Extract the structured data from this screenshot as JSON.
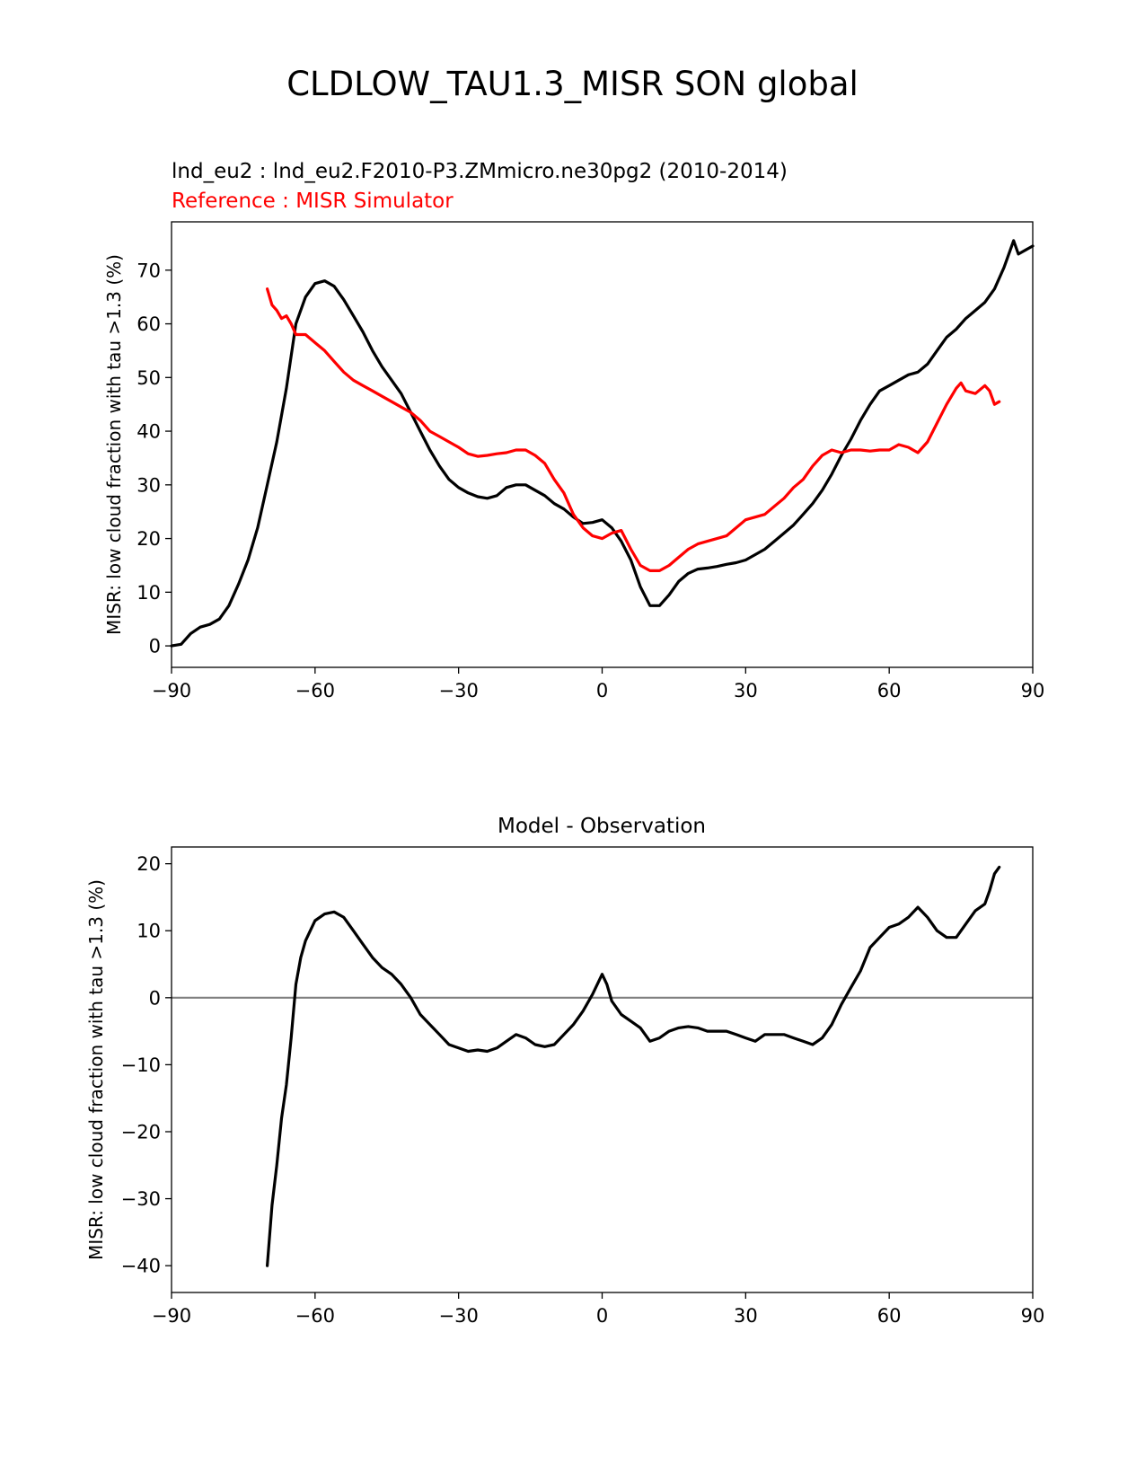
{
  "title": "CLDLOW_TAU1.3_MISR SON global",
  "chart_data": [
    {
      "type": "line",
      "subtitle_test": "lnd_eu2 : lnd_eu2.F2010-P3.ZMmicro.ne30pg2 (2010-2014)",
      "subtitle_reference": "Reference : MISR Simulator",
      "xlabel": "",
      "ylabel": "MISR: low cloud fraction with tau >1.3 (%)",
      "xlim": [
        -90,
        90
      ],
      "ylim": [
        -4,
        79
      ],
      "xticks": [
        -90,
        -60,
        -30,
        0,
        30,
        60,
        90
      ],
      "yticks": [
        0,
        10,
        20,
        30,
        40,
        50,
        60,
        70
      ],
      "series": [
        {
          "name": "lnd_eu2 (test)",
          "color": "#000000",
          "points": [
            [
              -90,
              0
            ],
            [
              -88,
              0.3
            ],
            [
              -86,
              2.3
            ],
            [
              -84,
              3.5
            ],
            [
              -82,
              4
            ],
            [
              -80,
              5
            ],
            [
              -78,
              7.5
            ],
            [
              -76,
              11.5
            ],
            [
              -74,
              16
            ],
            [
              -72,
              22
            ],
            [
              -70,
              30
            ],
            [
              -68,
              38
            ],
            [
              -66,
              48
            ],
            [
              -64,
              60
            ],
            [
              -62,
              65
            ],
            [
              -60,
              67.5
            ],
            [
              -58,
              68
            ],
            [
              -56,
              67
            ],
            [
              -54,
              64.5
            ],
            [
              -52,
              61.5
            ],
            [
              -50,
              58.5
            ],
            [
              -48,
              55
            ],
            [
              -46,
              52
            ],
            [
              -44,
              49.5
            ],
            [
              -42,
              47
            ],
            [
              -40,
              43.5
            ],
            [
              -38,
              40
            ],
            [
              -36,
              36.5
            ],
            [
              -34,
              33.5
            ],
            [
              -32,
              31
            ],
            [
              -30,
              29.5
            ],
            [
              -28,
              28.5
            ],
            [
              -26,
              27.8
            ],
            [
              -24,
              27.5
            ],
            [
              -22,
              28
            ],
            [
              -20,
              29.5
            ],
            [
              -18,
              30
            ],
            [
              -16,
              30
            ],
            [
              -14,
              29
            ],
            [
              -12,
              28
            ],
            [
              -10,
              26.5
            ],
            [
              -8,
              25.5
            ],
            [
              -6,
              24
            ],
            [
              -4,
              22.8
            ],
            [
              -2,
              23
            ],
            [
              0,
              23.5
            ],
            [
              2,
              22
            ],
            [
              4,
              19.5
            ],
            [
              6,
              16
            ],
            [
              8,
              11
            ],
            [
              10,
              7.5
            ],
            [
              12,
              7.5
            ],
            [
              14,
              9.5
            ],
            [
              16,
              12
            ],
            [
              18,
              13.5
            ],
            [
              20,
              14.3
            ],
            [
              22,
              14.5
            ],
            [
              24,
              14.8
            ],
            [
              26,
              15.2
            ],
            [
              28,
              15.5
            ],
            [
              30,
              16
            ],
            [
              32,
              17
            ],
            [
              34,
              18
            ],
            [
              36,
              19.5
            ],
            [
              38,
              21
            ],
            [
              40,
              22.5
            ],
            [
              42,
              24.5
            ],
            [
              44,
              26.5
            ],
            [
              46,
              29
            ],
            [
              48,
              32
            ],
            [
              50,
              35.5
            ],
            [
              52,
              38.5
            ],
            [
              54,
              42
            ],
            [
              56,
              45
            ],
            [
              58,
              47.5
            ],
            [
              60,
              48.5
            ],
            [
              62,
              49.5
            ],
            [
              64,
              50.5
            ],
            [
              66,
              51
            ],
            [
              68,
              52.5
            ],
            [
              70,
              55
            ],
            [
              72,
              57.5
            ],
            [
              74,
              59
            ],
            [
              76,
              61
            ],
            [
              78,
              62.5
            ],
            [
              80,
              64
            ],
            [
              82,
              66.5
            ],
            [
              84,
              70.5
            ],
            [
              86,
              75.5
            ],
            [
              87,
              73
            ],
            [
              88,
              73.5
            ],
            [
              90,
              74.5
            ]
          ]
        },
        {
          "name": "MISR Simulator (reference)",
          "color": "#ff0000",
          "points": [
            [
              -70,
              66.5
            ],
            [
              -69,
              63.5
            ],
            [
              -68,
              62.5
            ],
            [
              -67,
              61
            ],
            [
              -66,
              61.5
            ],
            [
              -65,
              60
            ],
            [
              -64,
              58
            ],
            [
              -62,
              58
            ],
            [
              -60,
              56.5
            ],
            [
              -58,
              55
            ],
            [
              -56,
              53
            ],
            [
              -54,
              51
            ],
            [
              -52,
              49.5
            ],
            [
              -50,
              48.5
            ],
            [
              -48,
              47.5
            ],
            [
              -46,
              46.5
            ],
            [
              -44,
              45.5
            ],
            [
              -42,
              44.5
            ],
            [
              -40,
              43.5
            ],
            [
              -38,
              42
            ],
            [
              -36,
              40
            ],
            [
              -34,
              39
            ],
            [
              -32,
              38
            ],
            [
              -30,
              37
            ],
            [
              -28,
              35.8
            ],
            [
              -26,
              35.3
            ],
            [
              -24,
              35.5
            ],
            [
              -22,
              35.8
            ],
            [
              -20,
              36
            ],
            [
              -18,
              36.5
            ],
            [
              -16,
              36.5
            ],
            [
              -14,
              35.5
            ],
            [
              -12,
              34
            ],
            [
              -10,
              31
            ],
            [
              -8,
              28.5
            ],
            [
              -6,
              24.5
            ],
            [
              -4,
              22
            ],
            [
              -2,
              20.5
            ],
            [
              0,
              20
            ],
            [
              2,
              21
            ],
            [
              4,
              21.5
            ],
            [
              6,
              18
            ],
            [
              8,
              15
            ],
            [
              10,
              14
            ],
            [
              12,
              14
            ],
            [
              14,
              15
            ],
            [
              16,
              16.5
            ],
            [
              18,
              18
            ],
            [
              20,
              19
            ],
            [
              22,
              19.5
            ],
            [
              24,
              20
            ],
            [
              26,
              20.5
            ],
            [
              28,
              22
            ],
            [
              30,
              23.5
            ],
            [
              32,
              24
            ],
            [
              34,
              24.5
            ],
            [
              36,
              26
            ],
            [
              38,
              27.5
            ],
            [
              40,
              29.5
            ],
            [
              42,
              31
            ],
            [
              44,
              33.5
            ],
            [
              46,
              35.5
            ],
            [
              48,
              36.5
            ],
            [
              50,
              36
            ],
            [
              52,
              36.5
            ],
            [
              54,
              36.5
            ],
            [
              56,
              36.3
            ],
            [
              58,
              36.5
            ],
            [
              60,
              36.5
            ],
            [
              62,
              37.5
            ],
            [
              64,
              37
            ],
            [
              66,
              36
            ],
            [
              68,
              38
            ],
            [
              70,
              41.5
            ],
            [
              72,
              45
            ],
            [
              74,
              48
            ],
            [
              75,
              49
            ],
            [
              76,
              47.5
            ],
            [
              78,
              47
            ],
            [
              80,
              48.5
            ],
            [
              81,
              47.5
            ],
            [
              82,
              45
            ],
            [
              83,
              45.5
            ]
          ]
        }
      ]
    },
    {
      "type": "line",
      "title": "Model - Observation",
      "xlabel": "",
      "ylabel": "MISR: low cloud fraction with tau >1.3 (%)",
      "xlim": [
        -90,
        90
      ],
      "ylim": [
        -44,
        22.5
      ],
      "xticks": [
        -90,
        -60,
        -30,
        0,
        30,
        60,
        90
      ],
      "yticks": [
        -40,
        -30,
        -20,
        -10,
        0,
        10,
        20
      ],
      "zero_line_color": "#808080",
      "series": [
        {
          "name": "Model - Observation",
          "color": "#000000",
          "points": [
            [
              -70,
              -40
            ],
            [
              -69,
              -31
            ],
            [
              -68,
              -25
            ],
            [
              -67,
              -18
            ],
            [
              -66,
              -13
            ],
            [
              -65,
              -6
            ],
            [
              -64,
              2
            ],
            [
              -63,
              6
            ],
            [
              -62,
              8.5
            ],
            [
              -61,
              10
            ],
            [
              -60,
              11.5
            ],
            [
              -58,
              12.5
            ],
            [
              -56,
              12.8
            ],
            [
              -54,
              12
            ],
            [
              -52,
              10
            ],
            [
              -50,
              8
            ],
            [
              -48,
              6
            ],
            [
              -46,
              4.5
            ],
            [
              -44,
              3.5
            ],
            [
              -42,
              2
            ],
            [
              -40,
              0
            ],
            [
              -38,
              -2.5
            ],
            [
              -36,
              -4
            ],
            [
              -34,
              -5.5
            ],
            [
              -32,
              -7
            ],
            [
              -30,
              -7.5
            ],
            [
              -28,
              -8
            ],
            [
              -26,
              -7.8
            ],
            [
              -24,
              -8
            ],
            [
              -22,
              -7.5
            ],
            [
              -20,
              -6.5
            ],
            [
              -18,
              -5.5
            ],
            [
              -16,
              -6
            ],
            [
              -14,
              -7
            ],
            [
              -12,
              -7.3
            ],
            [
              -10,
              -7
            ],
            [
              -8,
              -5.5
            ],
            [
              -6,
              -4
            ],
            [
              -4,
              -2
            ],
            [
              -2,
              0.5
            ],
            [
              0,
              3.5
            ],
            [
              1,
              2
            ],
            [
              2,
              -0.5
            ],
            [
              4,
              -2.5
            ],
            [
              6,
              -3.5
            ],
            [
              8,
              -4.5
            ],
            [
              10,
              -6.5
            ],
            [
              12,
              -6
            ],
            [
              14,
              -5
            ],
            [
              16,
              -4.5
            ],
            [
              18,
              -4.3
            ],
            [
              20,
              -4.5
            ],
            [
              22,
              -5
            ],
            [
              24,
              -5
            ],
            [
              26,
              -5
            ],
            [
              28,
              -5.5
            ],
            [
              30,
              -6
            ],
            [
              32,
              -6.5
            ],
            [
              34,
              -5.5
            ],
            [
              36,
              -5.5
            ],
            [
              38,
              -5.5
            ],
            [
              40,
              -6
            ],
            [
              42,
              -6.5
            ],
            [
              44,
              -7
            ],
            [
              46,
              -6
            ],
            [
              48,
              -4
            ],
            [
              50,
              -1
            ],
            [
              52,
              1.5
            ],
            [
              54,
              4
            ],
            [
              56,
              7.5
            ],
            [
              58,
              9
            ],
            [
              60,
              10.5
            ],
            [
              62,
              11
            ],
            [
              64,
              12
            ],
            [
              66,
              13.5
            ],
            [
              68,
              12
            ],
            [
              70,
              10
            ],
            [
              72,
              9
            ],
            [
              74,
              9
            ],
            [
              76,
              11
            ],
            [
              78,
              13
            ],
            [
              80,
              14
            ],
            [
              81,
              16
            ],
            [
              82,
              18.5
            ],
            [
              83,
              19.5
            ]
          ]
        }
      ]
    }
  ]
}
